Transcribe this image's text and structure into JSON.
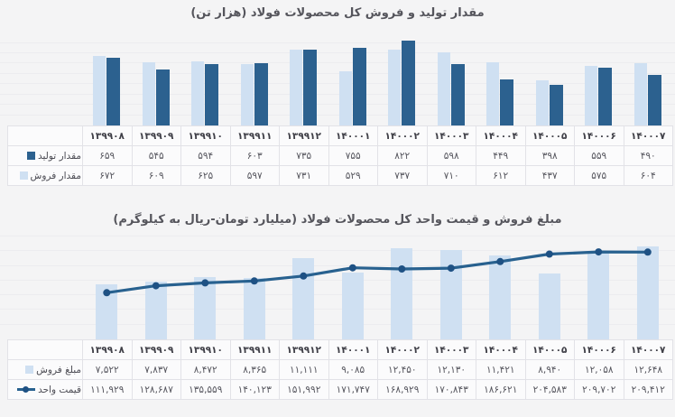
{
  "colors": {
    "background": "#f4f4f5",
    "bar_dark": "#2c618f",
    "bar_light": "#cfe0f2",
    "line": "#28618f",
    "dot": "#1e5184"
  },
  "chart_data": [
    {
      "type": "bar",
      "title": "مقدار تولید و فروش کل محصولات فولاد (هزار تن)",
      "legend_position": "table-left",
      "grid": "faint-horizontal",
      "ylim": [
        0,
        850
      ],
      "categories": [
        "۱۳۹۹۰۸",
        "۱۳۹۹۰۹",
        "۱۳۹۹۱۰",
        "۱۳۹۹۱۱",
        "۱۳۹۹۱۲",
        "۱۴۰۰۰۱",
        "۱۴۰۰۰۲",
        "۱۴۰۰۰۳",
        "۱۴۰۰۰۴",
        "۱۴۰۰۰۵",
        "۱۴۰۰۰۶",
        "۱۴۰۰۰۷"
      ],
      "categories_latin": [
        "139908",
        "139909",
        "139910",
        "139911",
        "139912",
        "140001",
        "140002",
        "140003",
        "140004",
        "140005",
        "140006",
        "140007"
      ],
      "series": [
        {
          "name": "مقدار تولید",
          "marker": "square-dark",
          "values": [
            659,
            545,
            594,
            603,
            735,
            755,
            822,
            598,
            449,
            398,
            559,
            490
          ],
          "labels": [
            "۶۵۹",
            "۵۴۵",
            "۵۹۴",
            "۶۰۳",
            "۷۳۵",
            "۷۵۵",
            "۸۲۲",
            "۵۹۸",
            "۴۴۹",
            "۳۹۸",
            "۵۵۹",
            "۴۹۰"
          ]
        },
        {
          "name": "مقدار فروش",
          "marker": "square-light",
          "values": [
            672,
            609,
            625,
            597,
            731,
            529,
            737,
            710,
            612,
            437,
            575,
            604
          ],
          "labels": [
            "۶۷۲",
            "۶۰۹",
            "۶۲۵",
            "۵۹۷",
            "۷۳۱",
            "۵۲۹",
            "۷۳۷",
            "۷۱۰",
            "۶۱۲",
            "۴۳۷",
            "۵۷۵",
            "۶۰۴"
          ]
        }
      ]
    },
    {
      "type": "bar+line",
      "title": "مبلغ فروش و قیمت واحد کل محصولات فولاد (میلیارد تومان-ریال به کیلوگرم)",
      "legend_position": "table-left",
      "grid": "faint-horizontal",
      "bar_ylim": [
        0,
        14500
      ],
      "line_ylim": [
        0,
        255000
      ],
      "categories": [
        "۱۳۹۹۰۸",
        "۱۳۹۹۰۹",
        "۱۳۹۹۱۰",
        "۱۳۹۹۱۱",
        "۱۳۹۹۱۲",
        "۱۴۰۰۰۱",
        "۱۴۰۰۰۲",
        "۱۴۰۰۰۳",
        "۱۴۰۰۰۴",
        "۱۴۰۰۰۵",
        "۱۴۰۰۰۶",
        "۱۴۰۰۰۷"
      ],
      "series": [
        {
          "name": "مبلغ فروش",
          "type": "bar",
          "marker": "square-light",
          "values": [
            7522,
            7837,
            8472,
            8365,
            11111,
            9085,
            12450,
            12130,
            11421,
            8940,
            12058,
            12648
          ],
          "labels": [
            "۷,۵۲۲",
            "۷,۸۳۷",
            "۸,۴۷۲",
            "۸,۳۶۵",
            "۱۱,۱۱۱",
            "۹,۰۸۵",
            "۱۲,۴۵۰",
            "۱۲,۱۳۰",
            "۱۱,۴۲۱",
            "۸,۹۴۰",
            "۱۲,۰۵۸",
            "۱۲,۶۴۸"
          ]
        },
        {
          "name": "قیمت واحد",
          "type": "line",
          "marker": "line-dot",
          "values": [
            111929,
            128687,
            135559,
            140123,
            151992,
            171747,
            168929,
            170843,
            186621,
            204583,
            209702,
            209412
          ],
          "labels": [
            "۱۱۱,۹۲۹",
            "۱۲۸,۶۸۷",
            "۱۳۵,۵۵۹",
            "۱۴۰,۱۲۳",
            "۱۵۱,۹۹۲",
            "۱۷۱,۷۴۷",
            "۱۶۸,۹۲۹",
            "۱۷۰,۸۴۳",
            "۱۸۶,۶۲۱",
            "۲۰۴,۵۸۳",
            "۲۰۹,۷۰۲",
            "۲۰۹,۴۱۲"
          ]
        }
      ]
    }
  ]
}
